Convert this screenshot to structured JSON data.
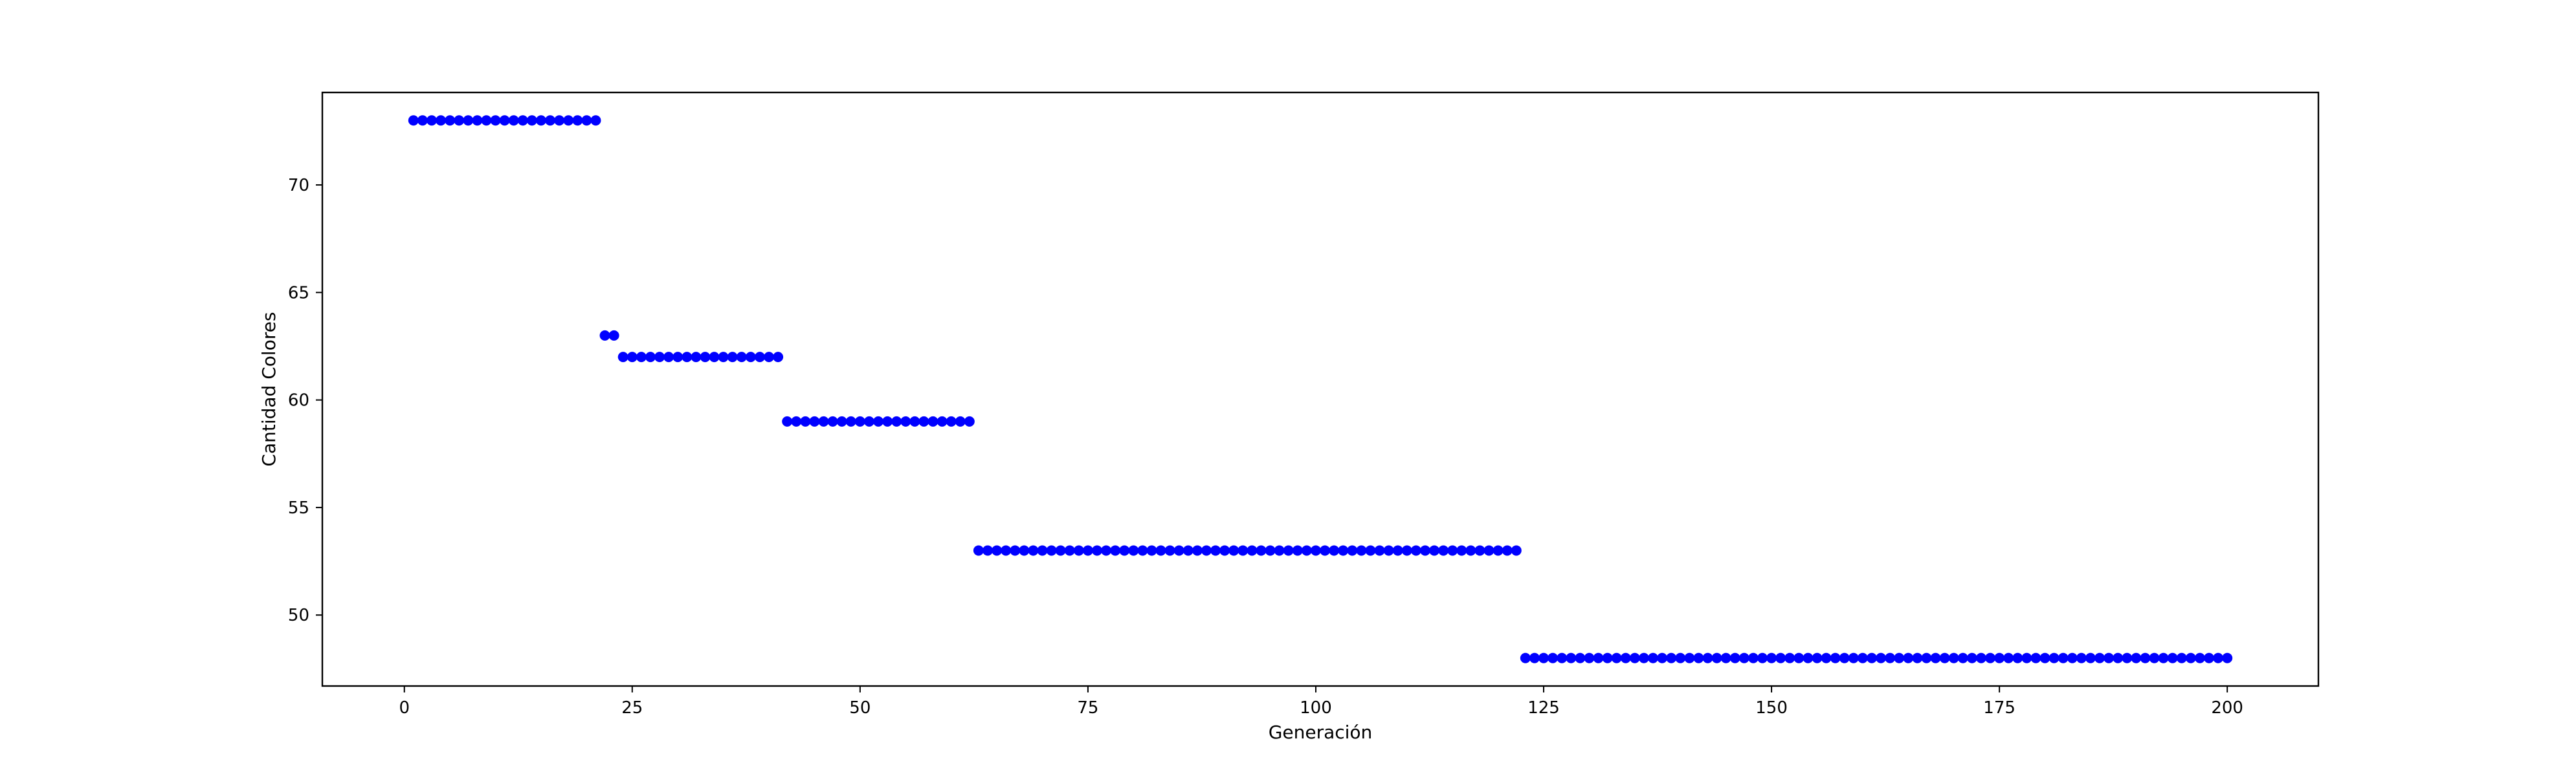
{
  "chart_data": {
    "type": "scatter",
    "title": "",
    "xlabel": "Generación",
    "ylabel": "Cantidad Colores",
    "xlim": [
      -9,
      210
    ],
    "ylim": [
      46.7,
      74.3
    ],
    "grid": false,
    "marker_color": "#0000ff",
    "x_ticks": [
      {
        "value": 0,
        "label": "0"
      },
      {
        "value": 25,
        "label": "25"
      },
      {
        "value": 50,
        "label": "50"
      },
      {
        "value": 75,
        "label": "75"
      },
      {
        "value": 100,
        "label": "100"
      },
      {
        "value": 125,
        "label": "125"
      },
      {
        "value": 150,
        "label": "150"
      },
      {
        "value": 175,
        "label": "175"
      },
      {
        "value": 200,
        "label": "200"
      }
    ],
    "y_ticks": [
      {
        "value": 50,
        "label": "50"
      },
      {
        "value": 55,
        "label": "55"
      },
      {
        "value": 60,
        "label": "60"
      },
      {
        "value": 65,
        "label": "65"
      },
      {
        "value": 70,
        "label": "70"
      }
    ],
    "segments": [
      {
        "x_start": 1,
        "x_end": 21,
        "y": 73
      },
      {
        "x_start": 22,
        "x_end": 23,
        "y": 63
      },
      {
        "x_start": 24,
        "x_end": 41,
        "y": 62
      },
      {
        "x_start": 42,
        "x_end": 62,
        "y": 59
      },
      {
        "x_start": 63,
        "x_end": 122,
        "y": 53
      },
      {
        "x_start": 123,
        "x_end": 200,
        "y": 48
      }
    ]
  }
}
